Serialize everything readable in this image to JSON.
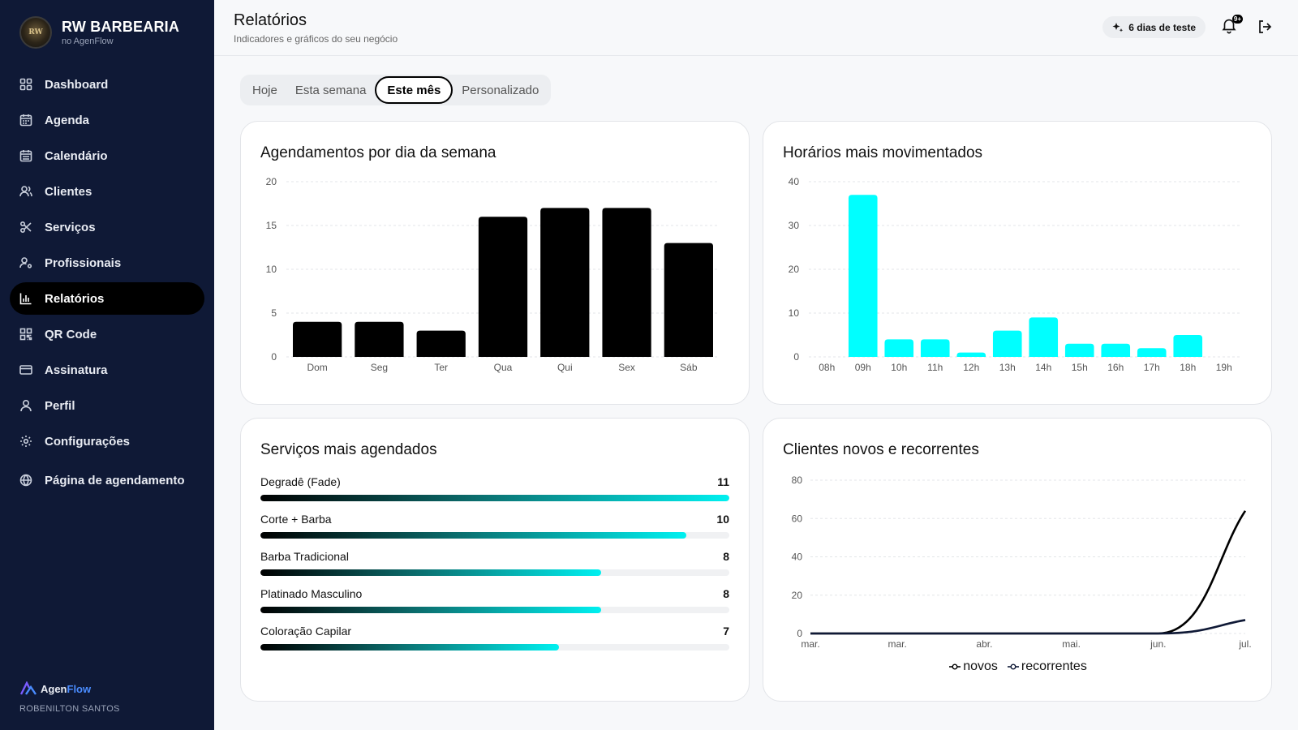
{
  "brand": {
    "name": "RW BARBEARIA",
    "subtitle": "no AgenFlow",
    "logo_text": "RW"
  },
  "nav": [
    {
      "label": "Dashboard",
      "icon": "grid-icon",
      "active": false
    },
    {
      "label": "Agenda",
      "icon": "calendar-icon",
      "active": false
    },
    {
      "label": "Calendário",
      "icon": "calendar-days-icon",
      "active": false
    },
    {
      "label": "Clientes",
      "icon": "users-icon",
      "active": false
    },
    {
      "label": "Serviços",
      "icon": "scissors-icon",
      "active": false
    },
    {
      "label": "Profissionais",
      "icon": "user-cog-icon",
      "active": false
    },
    {
      "label": "Relatórios",
      "icon": "bar-chart-icon",
      "active": true
    },
    {
      "label": "QR Code",
      "icon": "qr-code-icon",
      "active": false
    },
    {
      "label": "Assinatura",
      "icon": "credit-card-icon",
      "active": false
    },
    {
      "label": "Perfil",
      "icon": "user-icon",
      "active": false
    },
    {
      "label": "Configurações",
      "icon": "settings-icon",
      "active": false
    },
    {
      "label": "Página de agendamento",
      "icon": "globe-icon",
      "active": false
    }
  ],
  "footer": {
    "logo_part1": "Agen",
    "logo_part2": "Flow",
    "user": "ROBENILTON SANTOS"
  },
  "header": {
    "title": "Relatórios",
    "subtitle": "Indicadores e gráficos do seu negócio",
    "trial": "6 dias de teste",
    "notifications_badge": "9+"
  },
  "tabs": [
    {
      "label": "Hoje",
      "active": false
    },
    {
      "label": "Esta semana",
      "active": false
    },
    {
      "label": "Este mês",
      "active": true
    },
    {
      "label": "Personalizado",
      "active": false
    }
  ],
  "cards": {
    "weekday_title": "Agendamentos por dia da semana",
    "hours_title": "Horários mais movimentados",
    "services_title": "Serviços mais agendados",
    "clients_title": "Clientes novos e recorrentes"
  },
  "colors": {
    "sidebar": "#0f1936",
    "bar_dark": "#000000",
    "bar_cyan": "#00ffff",
    "line_recurring": "#0f1936"
  },
  "chart_data": [
    {
      "type": "bar",
      "title": "Agendamentos por dia da semana",
      "categories": [
        "Dom",
        "Seg",
        "Ter",
        "Qua",
        "Qui",
        "Sex",
        "Sáb"
      ],
      "values": [
        4,
        4,
        3,
        16,
        17,
        17,
        13
      ],
      "yticks": [
        0,
        5,
        10,
        15,
        20
      ],
      "ylim": [
        0,
        20
      ],
      "grid": true
    },
    {
      "type": "bar",
      "title": "Horários mais movimentados",
      "categories": [
        "08h",
        "09h",
        "10h",
        "11h",
        "12h",
        "13h",
        "14h",
        "15h",
        "16h",
        "17h",
        "18h",
        "19h"
      ],
      "values": [
        0,
        37,
        4,
        4,
        1,
        6,
        9,
        3,
        3,
        2,
        5,
        0
      ],
      "yticks": [
        0,
        10,
        20,
        30,
        40
      ],
      "ylim": [
        0,
        40
      ],
      "grid": true
    },
    {
      "type": "bar",
      "title": "Serviços mais agendados",
      "orientation": "horizontal",
      "categories": [
        "Degradê (Fade)",
        "Corte + Barba",
        "Barba Tradicional",
        "Platinado Masculino",
        "Coloração Capilar"
      ],
      "values": [
        11,
        10,
        8,
        8,
        7
      ],
      "xlim": [
        0,
        11
      ]
    },
    {
      "type": "line",
      "title": "Clientes novos e recorrentes",
      "x": [
        "mar.",
        "mar.",
        "abr.",
        "mai.",
        "jun.",
        "jul."
      ],
      "series": [
        {
          "name": "novos",
          "values": [
            0,
            0,
            0,
            0,
            0,
            64
          ]
        },
        {
          "name": "recorrentes",
          "values": [
            0,
            0,
            0,
            0,
            0,
            7
          ]
        }
      ],
      "yticks": [
        0,
        20,
        40,
        60,
        80
      ],
      "ylim": [
        0,
        80
      ],
      "legend": "bottom"
    }
  ]
}
